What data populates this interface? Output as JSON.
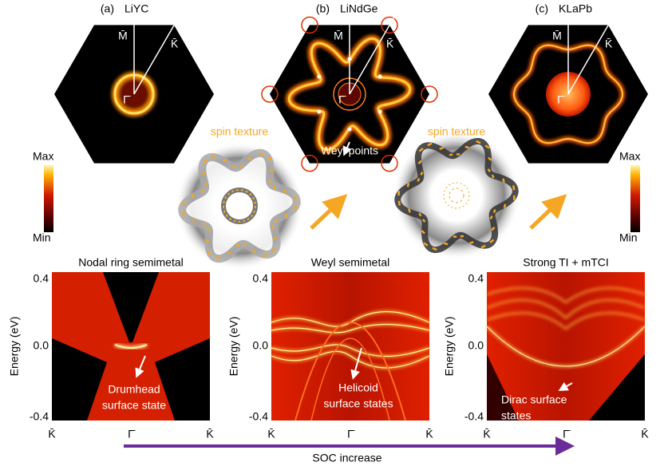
{
  "top_panels": [
    {
      "label": "(a)",
      "material": "LiYC",
      "m_point": "M̄",
      "k_point": "K̄",
      "gamma_point": "Γ̄"
    },
    {
      "label": "(b)",
      "material": "LiNdGe",
      "m_point": "M̄",
      "k_point": "K̄",
      "gamma_point": "Γ̄"
    },
    {
      "label": "(c)",
      "material": "KLaPb",
      "m_point": "M̄",
      "k_point": "K̄",
      "gamma_point": "Γ̄"
    }
  ],
  "weyl_annotation": "Weyl points",
  "spin_texture": [
    "spin texture",
    "spin texture"
  ],
  "colorbars": [
    {
      "max": "Max",
      "min": "Min"
    },
    {
      "max": "Max",
      "min": "Min"
    }
  ],
  "bottom_panels": [
    {
      "title": "Nodal ring  semimetal",
      "y_label": "Energy (eV)",
      "y_ticks": [
        "0.4",
        "0.0",
        "-0.4"
      ],
      "x_ticks": [
        "K̄",
        "Γ̄",
        "K̄"
      ],
      "annotation": [
        "Drumhead",
        "surface state"
      ]
    },
    {
      "title": "Weyl semimetal",
      "y_label": "Energy (eV)",
      "y_ticks": [
        "0.4",
        "0.0",
        "-0.4"
      ],
      "x_ticks": [
        "K̄",
        "Γ̄",
        "K̄"
      ],
      "annotation": [
        "Helicoid",
        "surface states"
      ]
    },
    {
      "title": "Strong TI + mTCI",
      "y_label": "Energy (eV)",
      "y_ticks": [
        "0.4",
        "0.0",
        "-0.4"
      ],
      "x_ticks": [
        "K̄",
        "Γ̄",
        "K̄"
      ],
      "annotation": [
        "Dirac surface",
        "states"
      ]
    }
  ],
  "soc_label": "SOC increase"
}
